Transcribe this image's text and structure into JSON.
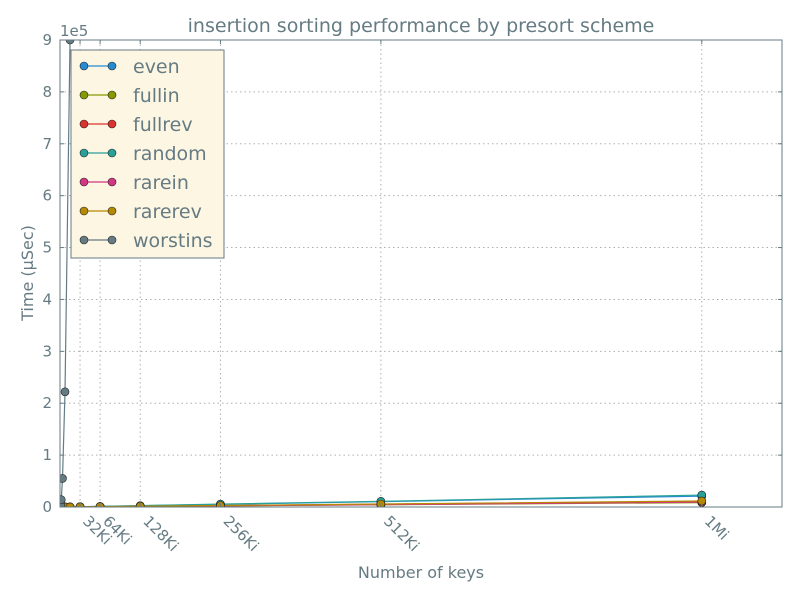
{
  "chart_data": {
    "type": "line",
    "title": "insertion sorting performance by presort scheme",
    "xlabel": "Number of keys",
    "ylabel": "Time (μSec)",
    "y_offset_label": "1e5",
    "xlim": [
      0,
      1179648
    ],
    "ylim": [
      0,
      900000
    ],
    "x_ticks": [
      {
        "value": 32768,
        "label": "32Ki"
      },
      {
        "value": 65536,
        "label": "64Ki"
      },
      {
        "value": 131072,
        "label": "128Ki"
      },
      {
        "value": 262144,
        "label": "256Ki"
      },
      {
        "value": 524288,
        "label": "512Ki"
      },
      {
        "value": 1048576,
        "label": "1Mi"
      }
    ],
    "y_ticks": [
      {
        "value": 0,
        "label": "0"
      },
      {
        "value": 100000,
        "label": "1"
      },
      {
        "value": 200000,
        "label": "2"
      },
      {
        "value": 300000,
        "label": "3"
      },
      {
        "value": 400000,
        "label": "4"
      },
      {
        "value": 500000,
        "label": "5"
      },
      {
        "value": 600000,
        "label": "6"
      },
      {
        "value": 700000,
        "label": "7"
      },
      {
        "value": 800000,
        "label": "8"
      },
      {
        "value": 900000,
        "label": "9"
      }
    ],
    "grid": true,
    "legend_position": "top-left",
    "series": [
      {
        "name": "even",
        "color": "#268bd2",
        "x": [
          1024,
          2048,
          4096,
          8192,
          16384,
          32768,
          65536,
          131072,
          262144,
          524288,
          1048576
        ],
        "y": [
          15,
          30,
          65,
          130,
          270,
          560,
          1150,
          2400,
          5000,
          10300,
          21000
        ]
      },
      {
        "name": "fullin",
        "color": "#859900",
        "x": [
          1024,
          2048,
          4096,
          8192,
          16384,
          32768,
          65536,
          131072,
          262144,
          524288,
          1048576
        ],
        "y": [
          8,
          16,
          32,
          64,
          128,
          260,
          520,
          1040,
          2100,
          4200,
          8400
        ]
      },
      {
        "name": "fullrev",
        "color": "#dc322f",
        "x": [
          1024,
          2048,
          4096,
          8192,
          16384,
          32768,
          65536,
          131072,
          262144,
          524288,
          1048576
        ],
        "y": [
          10,
          20,
          40,
          80,
          160,
          330,
          660,
          1320,
          2650,
          5300,
          10600
        ]
      },
      {
        "name": "random",
        "color": "#2aa198",
        "x": [
          1024,
          2048,
          4096,
          8192,
          16384,
          32768,
          65536,
          131072,
          262144,
          524288,
          1048576
        ],
        "y": [
          12,
          28,
          60,
          125,
          260,
          540,
          1200,
          2600,
          5600,
          11000,
          23000
        ]
      },
      {
        "name": "rarein",
        "color": "#d33682",
        "x": [
          1024,
          2048,
          4096,
          8192,
          16384,
          32768,
          65536,
          131072,
          262144,
          524288,
          1048576
        ],
        "y": [
          9,
          18,
          36,
          72,
          145,
          290,
          580,
          1160,
          2330,
          4650,
          9300
        ]
      },
      {
        "name": "rarerev",
        "color": "#b58900",
        "x": [
          1024,
          2048,
          4096,
          8192,
          16384,
          32768,
          65536,
          131072,
          262144,
          524288,
          1048576
        ],
        "y": [
          11,
          22,
          44,
          88,
          180,
          360,
          720,
          1450,
          2900,
          5800,
          11600
        ]
      },
      {
        "name": "worstins",
        "color": "#657b83",
        "x": [
          1024,
          2048,
          4096,
          8192,
          16384
        ],
        "y": [
          3500,
          14000,
          55000,
          222000,
          900000
        ]
      }
    ]
  }
}
